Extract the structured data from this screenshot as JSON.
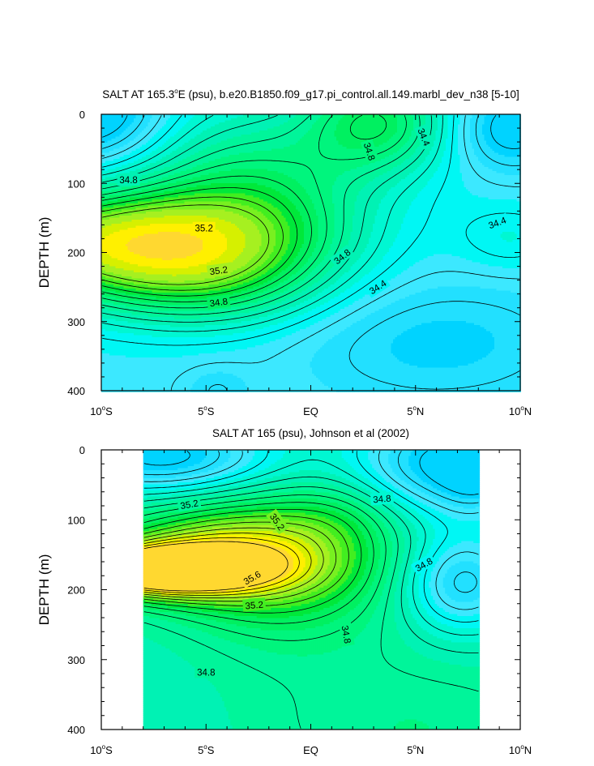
{
  "chart_data": [
    {
      "type": "contour",
      "title_parts": [
        "SALT AT 165.3",
        "o",
        "E (psu), b.e20.B1850.f09_g17.pi_control.all.149.marbl_dev_n38 [5-10]"
      ],
      "ylabel": "DEPTH (m)",
      "xlabel": "",
      "x_ticks": [
        {
          "value": -10,
          "deg": "10",
          "hem": "S"
        },
        {
          "value": -5,
          "deg": "5",
          "hem": "S"
        },
        {
          "value": 0,
          "text": "EQ"
        },
        {
          "value": 5,
          "deg": "5",
          "hem": "N"
        },
        {
          "value": 10,
          "deg": "10",
          "hem": "N"
        }
      ],
      "y_ticks": [
        "0",
        "100",
        "200",
        "300",
        "400"
      ],
      "xlim": [
        -10,
        10
      ],
      "ylim": [
        400,
        0
      ],
      "data_xlim": [
        -10,
        10
      ],
      "contour_levels": [
        34.2,
        34.3,
        34.4,
        34.5,
        34.6,
        34.7,
        34.8,
        34.9,
        35.0,
        35.1,
        35.2,
        35.3
      ],
      "contour_labels": [
        {
          "text": "34.8",
          "x": -8.7,
          "y": 95,
          "angle": 0
        },
        {
          "text": "35.2",
          "x": -5.1,
          "y": 165,
          "angle": 0
        },
        {
          "text": "35.2",
          "x": -4.4,
          "y": 226,
          "angle": -8
        },
        {
          "text": "34.8",
          "x": -4.4,
          "y": 272,
          "angle": -8
        },
        {
          "text": "34.8",
          "x": 2.8,
          "y": 54,
          "angle": 72
        },
        {
          "text": "34.4",
          "x": 5.4,
          "y": 33,
          "angle": 68
        },
        {
          "text": "34.8",
          "x": 1.5,
          "y": 206,
          "angle": -38
        },
        {
          "text": "34.4",
          "x": 3.2,
          "y": 250,
          "angle": -33
        },
        {
          "text": "34.4",
          "x": 8.9,
          "y": 157,
          "angle": -20
        }
      ]
    },
    {
      "type": "contour",
      "title_parts": [
        "SALT AT 165 (psu), Johnson et al (2002)"
      ],
      "ylabel": "DEPTH (m)",
      "xlabel": "",
      "x_ticks": [
        {
          "value": -10,
          "deg": "10",
          "hem": "S"
        },
        {
          "value": -5,
          "deg": "5",
          "hem": "S"
        },
        {
          "value": 0,
          "text": "EQ"
        },
        {
          "value": 5,
          "deg": "5",
          "hem": "N"
        },
        {
          "value": 10,
          "deg": "10",
          "hem": "N"
        }
      ],
      "y_ticks": [
        "0",
        "100",
        "200",
        "300",
        "400"
      ],
      "xlim": [
        -10,
        10
      ],
      "ylim": [
        400,
        0
      ],
      "data_xlim": [
        -8,
        8
      ],
      "contour_levels": [
        34.2,
        34.3,
        34.4,
        34.5,
        34.6,
        34.7,
        34.8,
        34.9,
        35.0,
        35.1,
        35.2,
        35.3,
        35.4,
        35.5,
        35.6,
        35.7
      ],
      "contour_labels": [
        {
          "text": "35.2",
          "x": -5.8,
          "y": 78,
          "angle": -10
        },
        {
          "text": "35.2",
          "x": -1.6,
          "y": 103,
          "angle": 55
        },
        {
          "text": "35.6",
          "x": -2.8,
          "y": 183,
          "angle": -30
        },
        {
          "text": "35.2",
          "x": -2.7,
          "y": 222,
          "angle": -5
        },
        {
          "text": "34.8",
          "x": 3.4,
          "y": 70,
          "angle": -5
        },
        {
          "text": "34.8",
          "x": 5.4,
          "y": 164,
          "angle": -30
        },
        {
          "text": "34.8",
          "x": 1.7,
          "y": 264,
          "angle": 80
        },
        {
          "text": "34.8",
          "x": -5.0,
          "y": 318,
          "angle": 0
        }
      ]
    }
  ]
}
